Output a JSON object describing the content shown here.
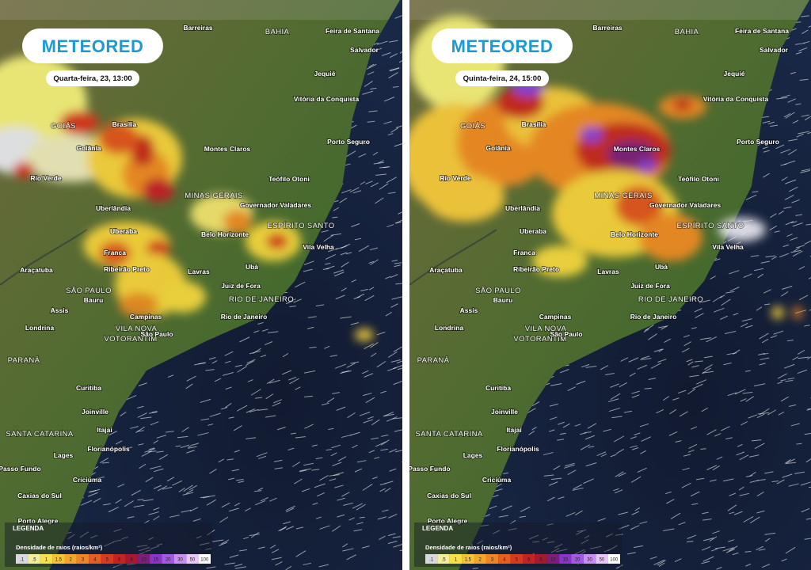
{
  "panels": [
    {
      "logo": "METEORED",
      "timestamp": "Quarta-feira, 23, 13:00"
    },
    {
      "logo": "METEORED",
      "timestamp": "Quinta-feira, 24, 15:00"
    }
  ],
  "map_labels": [
    "Barreiras",
    "BAHIA",
    "Feira de Santana",
    "Salvador",
    "Jequié",
    "Vitória da Conquista",
    "GOIÁS",
    "Brasília",
    "Goiânia",
    "Montes Claros",
    "Porto Seguro",
    "Rio Verde",
    "Teófilo Otoni",
    "MINAS GERAIS",
    "Governador Valadares",
    "Uberlândia",
    "ESPÍRITO SANTO",
    "Uberaba",
    "Belo Horizonte",
    "Vila Velha",
    "Franca",
    "Araçatuba",
    "Ribeirão Preto",
    "Lavras",
    "Ubá",
    "SÃO PAULO",
    "Juiz de Fora",
    "Bauru",
    "RIO DE JANEIRO",
    "Assis",
    "Campinas",
    "Rio de Janeiro",
    "Londrina",
    "VILA NOVA",
    "VOTORANTIM",
    "São Paulo",
    "PARANÁ",
    "Curitiba",
    "Joinville",
    "Itajaí",
    "SANTA CATARINA",
    "Florianópolis",
    "Lages",
    "Passo Fundo",
    "Criciúma",
    "Caxias do Sul",
    "Porto Alegre"
  ],
  "legend": {
    "title": "LEGENDA",
    "subtitle": "Densidade de raios (raios/km²)",
    "scale": [
      ".1",
      ".5",
      "1",
      "1.5",
      "2",
      "3",
      "4",
      "5",
      "6",
      "8",
      "10",
      "15",
      "20",
      "30",
      "50",
      "100"
    ]
  }
}
